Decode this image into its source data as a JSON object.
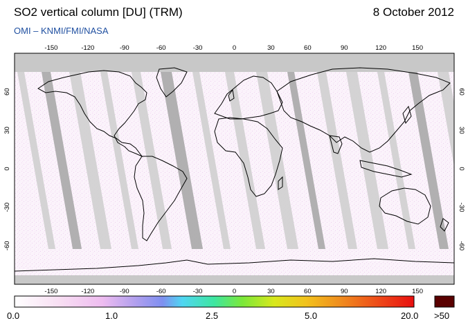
{
  "header": {
    "title": "SO2 vertical column [DU] (TRM)",
    "date": "8 October 2012",
    "credit": "OMI  –  KNMI/FMI/NASA"
  },
  "map": {
    "projection": "equirectangular",
    "lon_range": [
      -180,
      180
    ],
    "lat_range": [
      -90,
      90
    ],
    "lon_ticks": [
      "-150",
      "-120",
      "-90",
      "-60",
      "-30",
      "0",
      "30",
      "60",
      "90",
      "120",
      "150"
    ],
    "lat_ticks": [
      "60",
      "30",
      "0",
      "-30",
      "-60"
    ],
    "no_data_color": "#c8c8c8",
    "coastline_color": "#000000"
  },
  "colorbar": {
    "labels": [
      "0.0",
      "1.0",
      "2.5",
      "5.0",
      "20.0"
    ],
    "overflow_label": ">50",
    "overflow_color": "#5a0000"
  }
}
